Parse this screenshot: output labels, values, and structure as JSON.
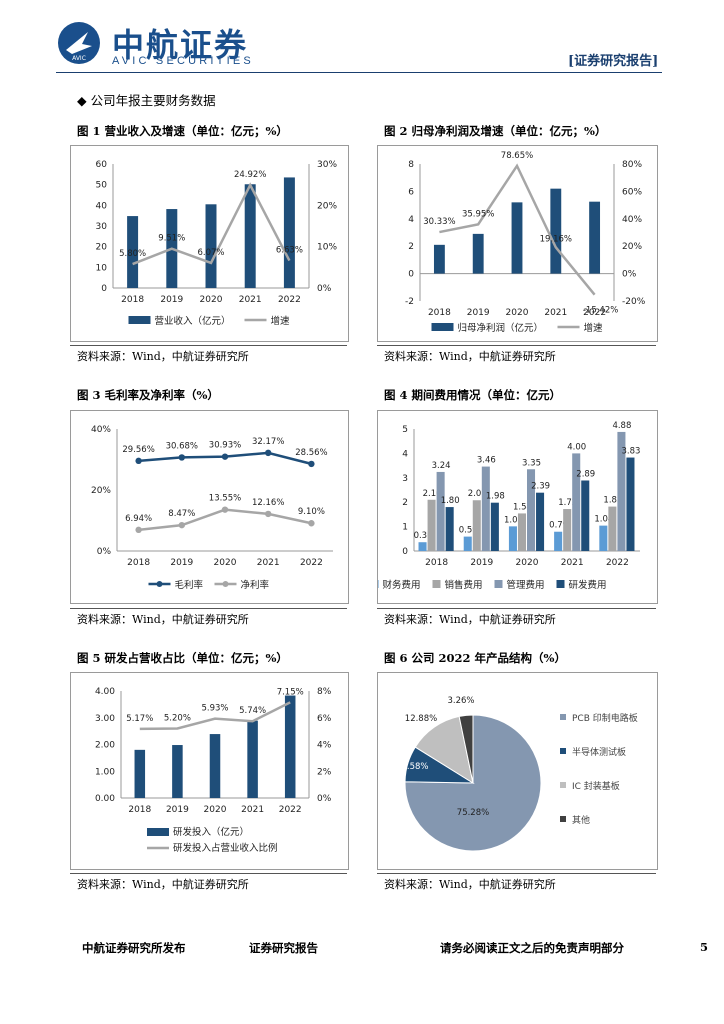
{
  "header": {
    "logo_cn": "中航证券",
    "logo_en": "AVIC SECURITIES",
    "logo_badge": "AVIC",
    "report_tag": "[证券研究报告]"
  },
  "section_title": "公司年报主要财务数据",
  "source_label": "资料来源：Wind，中航证券研究所",
  "footer": {
    "left": "中航证券研究所发布",
    "center": "证券研究报告",
    "right": "请务必阅读正文之后的免责声明部分",
    "page": "5"
  },
  "figures": [
    {
      "title": "图 1 营业收入及增速（单位：亿元；%）",
      "chart_data": {
        "type": "bar",
        "categories": [
          "2018",
          "2019",
          "2020",
          "2021",
          "2022"
        ],
        "y_left_ticks": [
          "0",
          "10",
          "20",
          "30",
          "40",
          "50",
          "60"
        ],
        "y_right_ticks": [
          "0%",
          "10%",
          "20%",
          "30%"
        ],
        "ylim_left": [
          0,
          60
        ],
        "ylim_right": [
          0,
          30
        ],
        "series": [
          {
            "name": "营业收入（亿元）",
            "kind": "bar",
            "axis": "left",
            "color": "#1f4e79",
            "values": [
              34.8,
              38.2,
              40.5,
              50.2,
              53.5
            ]
          },
          {
            "name": "增速",
            "kind": "line",
            "axis": "right",
            "color": "#a6a6a6",
            "values": [
              5.8,
              9.51,
              6.07,
              24.92,
              6.63
            ],
            "labels": [
              "5.80%",
              "9.51%",
              "6.07%",
              "24.92%",
              "6.63%"
            ]
          }
        ],
        "legend": "bottom"
      }
    },
    {
      "title": "图 2 归母净利润及增速（单位：亿元；%）",
      "chart_data": {
        "type": "bar",
        "categories": [
          "2018",
          "2019",
          "2020",
          "2021",
          "2022"
        ],
        "y_left_ticks": [
          "-2",
          "0",
          "2",
          "4",
          "6",
          "8"
        ],
        "y_right_ticks": [
          "-20%",
          "0%",
          "20%",
          "40%",
          "60%",
          "80%"
        ],
        "ylim_left": [
          -2,
          8
        ],
        "ylim_right": [
          -20,
          80
        ],
        "series": [
          {
            "name": "归母净利润（亿元）",
            "kind": "bar",
            "axis": "left",
            "color": "#1f4e79",
            "values": [
              2.1,
              2.9,
              5.2,
              6.2,
              5.25
            ]
          },
          {
            "name": "增速",
            "kind": "line",
            "axis": "right",
            "color": "#a6a6a6",
            "values": [
              30.33,
              35.95,
              78.65,
              19.16,
              -15.42
            ],
            "labels": [
              "30.33%",
              "35.95%",
              "78.65%",
              "19.16%",
              "-15.42%"
            ]
          }
        ],
        "legend": "bottom"
      }
    },
    {
      "title": "图 3 毛利率及净利率（%）",
      "chart_data": {
        "type": "line",
        "categories": [
          "2018",
          "2019",
          "2020",
          "2021",
          "2022"
        ],
        "y_left_ticks": [
          "0%",
          "20%",
          "40%"
        ],
        "ylim_left": [
          0,
          40
        ],
        "series": [
          {
            "name": "毛利率",
            "kind": "line",
            "axis": "left",
            "color": "#1f4e79",
            "values": [
              29.56,
              30.68,
              30.93,
              32.17,
              28.56
            ],
            "labels": [
              "29.56%",
              "30.68%",
              "30.93%",
              "32.17%",
              "28.56%"
            ]
          },
          {
            "name": "净利率",
            "kind": "line",
            "axis": "left",
            "color": "#a6a6a6",
            "values": [
              6.94,
              8.47,
              13.55,
              12.16,
              9.1
            ],
            "labels": [
              "6.94%",
              "8.47%",
              "13.55%",
              "12.16%",
              "9.10%"
            ]
          }
        ],
        "legend": "bottom"
      }
    },
    {
      "title": "图 4 期间费用情况（单位：亿元）",
      "chart_data": {
        "type": "bar",
        "categories": [
          "2018",
          "2019",
          "2020",
          "2021",
          "2022"
        ],
        "y_left_ticks": [
          "0",
          "1",
          "2",
          "3",
          "4",
          "5"
        ],
        "ylim_left": [
          0,
          5
        ],
        "series": [
          {
            "name": "财务费用",
            "kind": "bar",
            "axis": "left",
            "color": "#5b9bd5",
            "values": [
              0.36,
              0.59,
              1.01,
              0.79,
              1.04
            ],
            "labels": [
              "0.36",
              "0.59",
              "1.01",
              "0.79",
              "1.04"
            ]
          },
          {
            "name": "销售费用",
            "kind": "bar",
            "axis": "left",
            "color": "#a6a6a6",
            "values": [
              2.1,
              2.08,
              1.54,
              1.72,
              1.82
            ],
            "labels": [
              "2.10",
              "2.08",
              "1.54",
              "1.72",
              "1.82"
            ]
          },
          {
            "name": "管理费用",
            "kind": "bar",
            "axis": "left",
            "color": "#8497b0",
            "values": [
              3.24,
              3.46,
              3.35,
              4.0,
              4.88
            ],
            "labels": [
              "3.24",
              "3.46",
              "3.35",
              "4.00",
              "4.88"
            ]
          },
          {
            "name": "研发费用",
            "kind": "bar",
            "axis": "left",
            "color": "#1f4e79",
            "values": [
              1.8,
              1.98,
              2.39,
              2.89,
              3.83
            ],
            "labels": [
              "1.80",
              "1.98",
              "2.39",
              "2.89",
              "3.83"
            ]
          }
        ],
        "legend": "bottom"
      }
    },
    {
      "title": "图 5 研发占营收占比（单位：亿元；%）",
      "chart_data": {
        "type": "bar",
        "categories": [
          "2018",
          "2019",
          "2020",
          "2021",
          "2022"
        ],
        "y_left_ticks": [
          "0.00",
          "1.00",
          "2.00",
          "3.00",
          "4.00"
        ],
        "y_right_ticks": [
          "0%",
          "2%",
          "4%",
          "6%",
          "8%"
        ],
        "ylim_left": [
          0,
          4
        ],
        "ylim_right": [
          0,
          8
        ],
        "series": [
          {
            "name": "研发投入（亿元）",
            "kind": "bar",
            "axis": "left",
            "color": "#1f4e79",
            "values": [
              1.8,
              1.98,
              2.39,
              2.89,
              3.83
            ]
          },
          {
            "name": "研发投入占营业收入比例",
            "kind": "line",
            "axis": "right",
            "color": "#a6a6a6",
            "values": [
              5.17,
              5.2,
              5.93,
              5.74,
              7.15
            ],
            "labels": [
              "5.17%",
              "5.20%",
              "5.93%",
              "5.74%",
              "7.15%"
            ]
          }
        ],
        "legend": "bottom"
      }
    },
    {
      "title": "图 6 公司 2022 年产品结构（%）",
      "chart_data": {
        "type": "pie",
        "slices": [
          {
            "name": "PCB 印制电路板",
            "value": 75.28,
            "label": "75.28%",
            "color": "#8497b0"
          },
          {
            "name": "半导体测试板",
            "value": 8.58,
            "label": "8.58%",
            "color": "#1f4e79"
          },
          {
            "name": "IC 封装基板",
            "value": 12.88,
            "label": "12.88%",
            "color": "#bfbfbf"
          },
          {
            "name": "其他",
            "value": 3.26,
            "label": "3.26%",
            "color": "#404040"
          }
        ],
        "legend": "right"
      }
    }
  ]
}
